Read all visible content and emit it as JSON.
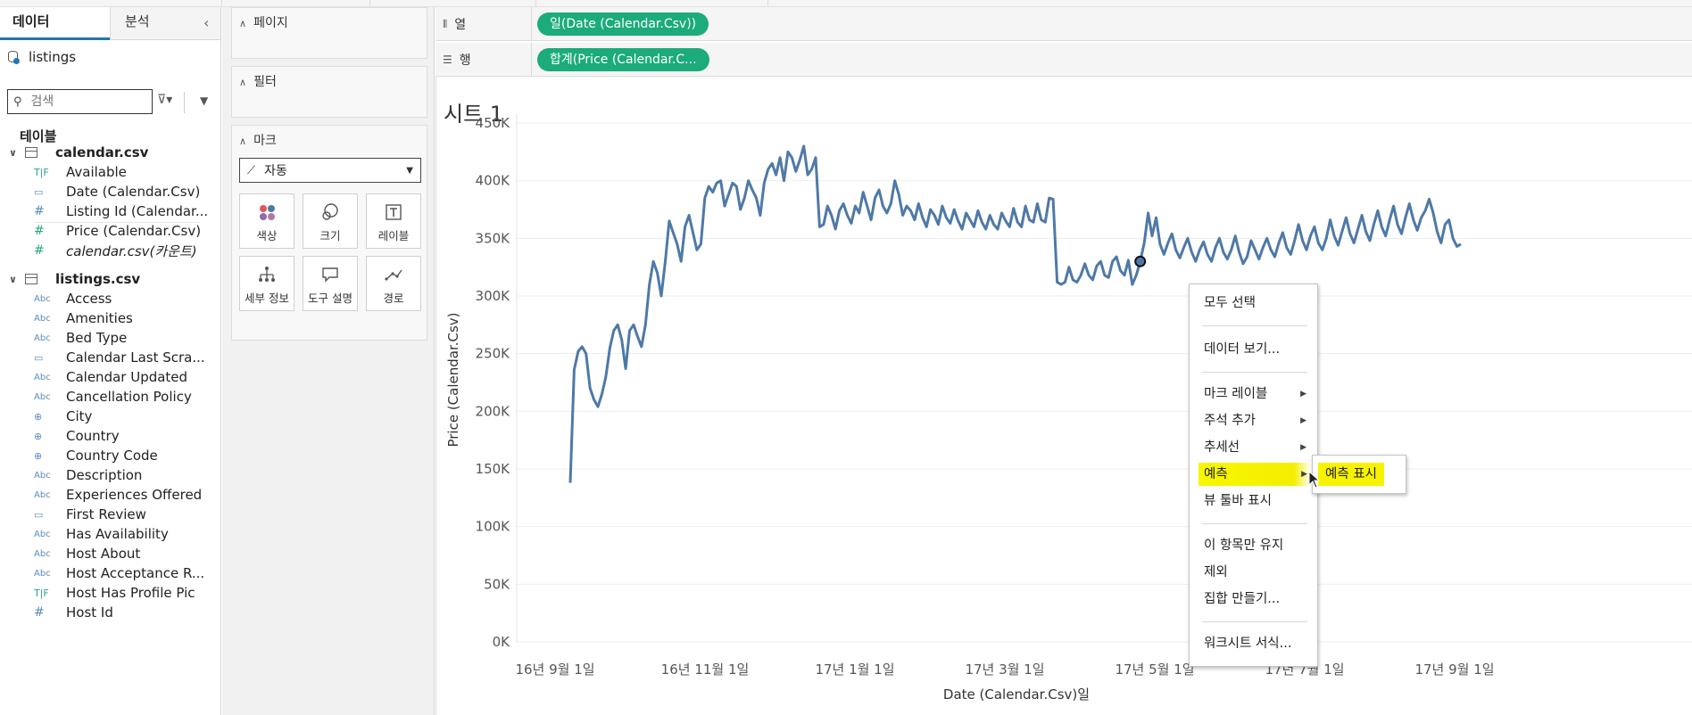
{
  "data_pane": {
    "tabs": [
      "데이터",
      "분석"
    ],
    "collapse_icon": "chevron-left-icon",
    "datasource": "listings",
    "search_placeholder": "검색",
    "tables_header": "테이블",
    "tables": [
      {
        "name": "calendar.csv",
        "fields": [
          {
            "type": "T|F",
            "name": "Available"
          },
          {
            "type": "date",
            "name": "Date (Calendar.Csv)"
          },
          {
            "type": "#dim",
            "name": "Listing Id (Calendar..."
          },
          {
            "type": "#",
            "name": "Price (Calendar.Csv)"
          },
          {
            "type": "#",
            "name": "calendar.csv(카운트)",
            "italic": true
          }
        ]
      },
      {
        "name": "listings.csv",
        "fields": [
          {
            "type": "Abc",
            "name": "Access"
          },
          {
            "type": "Abc",
            "name": "Amenities"
          },
          {
            "type": "Abc",
            "name": "Bed Type"
          },
          {
            "type": "date",
            "name": "Calendar Last Scra..."
          },
          {
            "type": "Abc",
            "name": "Calendar Updated"
          },
          {
            "type": "Abc",
            "name": "Cancellation Policy"
          },
          {
            "type": "geo",
            "name": "City"
          },
          {
            "type": "geo",
            "name": "Country"
          },
          {
            "type": "geo",
            "name": "Country Code"
          },
          {
            "type": "Abc",
            "name": "Description"
          },
          {
            "type": "Abc",
            "name": "Experiences Offered"
          },
          {
            "type": "date",
            "name": "First Review"
          },
          {
            "type": "Abc",
            "name": "Has Availability"
          },
          {
            "type": "Abc",
            "name": "Host About"
          },
          {
            "type": "Abc",
            "name": "Host Acceptance R..."
          },
          {
            "type": "T|F",
            "name": "Host Has Profile Pic"
          },
          {
            "type": "#dim",
            "name": "Host Id"
          }
        ]
      }
    ]
  },
  "cards": {
    "pages": "페이지",
    "filters": "필터",
    "marks": "마크",
    "mark_type": "자동",
    "mark_buttons": [
      {
        "label": "색상",
        "icon": "color-dots-icon"
      },
      {
        "label": "크기",
        "icon": "size-icon"
      },
      {
        "label": "레이블",
        "icon": "label-icon"
      },
      {
        "label": "세부 정보",
        "icon": "detail-icon"
      },
      {
        "label": "도구 설명",
        "icon": "tooltip-icon"
      },
      {
        "label": "경로",
        "icon": "path-icon"
      }
    ]
  },
  "shelves": {
    "columns_label": "열",
    "columns_pill": "일(Date (Calendar.Csv))",
    "rows_label": "행",
    "rows_pill": "합계(Price (Calendar.C..."
  },
  "sheet": {
    "title": "시트 1"
  },
  "chart_data": {
    "type": "line",
    "title": "",
    "xlabel": "Date (Calendar.Csv)일",
    "ylabel": "Price (Calendar.Csv)",
    "ylim": [
      0,
      450000
    ],
    "yticks": [
      "0K",
      "50K",
      "100K",
      "150K",
      "200K",
      "250K",
      "300K",
      "350K",
      "400K",
      "450K"
    ],
    "xticks": [
      "16년 9월 1일",
      "16년 11월 1일",
      "17년 1월 1일",
      "17년 3월 1일",
      "17년 5월 1일",
      "17년 7월 1일",
      "17년 9월 1일"
    ],
    "line_color": "#4e79a7",
    "series": [
      {
        "values": [
          138000,
          236000,
          252000,
          256000,
          250000,
          220000,
          210000,
          204000,
          215000,
          230000,
          255000,
          270000,
          275000,
          262000,
          237000,
          270000,
          275000,
          265000,
          256000,
          275000,
          310000,
          330000,
          320000,
          300000,
          330000,
          365000,
          355000,
          345000,
          330000,
          360000,
          370000,
          355000,
          340000,
          345000,
          385000,
          395000,
          390000,
          398000,
          400000,
          378000,
          388000,
          398000,
          395000,
          375000,
          385000,
          400000,
          392000,
          385000,
          370000,
          398000,
          410000,
          415000,
          405000,
          420000,
          400000,
          425000,
          420000,
          408000,
          418000,
          430000,
          405000,
          410000,
          420000,
          360000,
          362000,
          378000,
          370000,
          358000,
          374000,
          380000,
          370000,
          363000,
          378000,
          372000,
          390000,
          378000,
          366000,
          385000,
          392000,
          378000,
          372000,
          380000,
          400000,
          388000,
          370000,
          378000,
          374000,
          366000,
          380000,
          368000,
          360000,
          375000,
          370000,
          362000,
          378000,
          368000,
          363000,
          375000,
          365000,
          358000,
          372000,
          366000,
          360000,
          374000,
          364000,
          358000,
          370000,
          362000,
          358000,
          372000,
          365000,
          360000,
          376000,
          364000,
          360000,
          378000,
          366000,
          364000,
          380000,
          366000,
          364000,
          385000,
          384000,
          312000,
          310000,
          312000,
          325000,
          314000,
          312000,
          318000,
          328000,
          318000,
          314000,
          326000,
          330000,
          318000,
          316000,
          330000,
          334000,
          322000,
          318000,
          331000,
          310000,
          318000,
          330000,
          346000,
          372000,
          352000,
          368000,
          345000,
          336000,
          346000,
          354000,
          340000,
          333000,
          342000,
          350000,
          338000,
          330000,
          340000,
          347000,
          336000,
          330000,
          342000,
          350000,
          338000,
          332000,
          340000,
          352000,
          338000,
          328000,
          334000,
          348000,
          340000,
          332000,
          342000,
          350000,
          340000,
          334000,
          346000,
          355000,
          342000,
          336000,
          348000,
          362000,
          348000,
          340000,
          352000,
          360000,
          346000,
          340000,
          350000,
          366000,
          352000,
          344000,
          356000,
          368000,
          354000,
          346000,
          358000,
          370000,
          356000,
          348000,
          362000,
          374000,
          360000,
          352000,
          366000,
          378000,
          362000,
          354000,
          368000,
          380000,
          366000,
          357000,
          368000,
          374000,
          384000,
          372000,
          356000,
          346000,
          362000,
          366000,
          350000,
          343000,
          345000
        ]
      }
    ]
  },
  "context_menu": {
    "items": [
      "모두 선택",
      "데이터 보기...",
      "마크 레이블",
      "주석 추가",
      "추세선",
      "예측",
      "뷰 툴바 표시",
      "이 항목만 유지",
      "제외",
      "집합 만들기...",
      "워크시트 서식..."
    ],
    "submenu_item": "예측 표시"
  }
}
